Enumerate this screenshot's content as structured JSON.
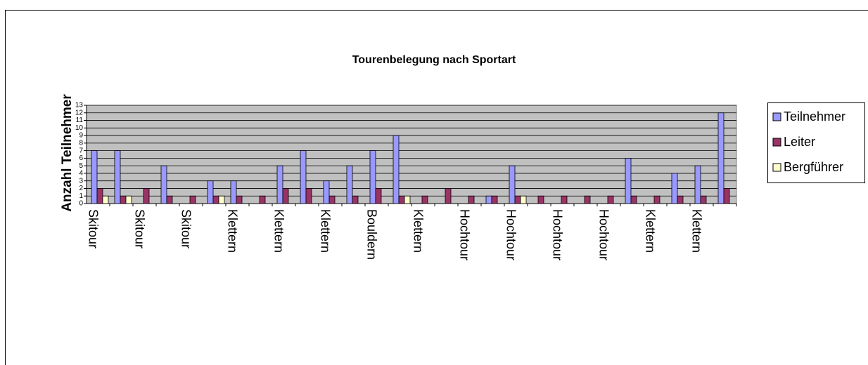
{
  "chart_data": {
    "type": "bar",
    "title": "Tourenbelegung nach Sportart",
    "y_label": "Anzahl Teilnehmer",
    "categories": [
      "Skitour",
      null,
      "Skitour",
      null,
      "Skitour",
      null,
      "Klettern",
      null,
      "Klettern",
      null,
      "Klettern",
      null,
      "Bouldern",
      null,
      "Klettern",
      null,
      "Hochtour",
      null,
      "Hochtour",
      null,
      "Hochtour",
      null,
      "Hochtour",
      null,
      "Klettern",
      null,
      "Klettern",
      null
    ],
    "series": [
      {
        "name": "Teilnehmer",
        "color": "#9999ff",
        "values": [
          7,
          7,
          0,
          5,
          0,
          3,
          3,
          0,
          5,
          7,
          3,
          5,
          7,
          9,
          0,
          0,
          0,
          1,
          5,
          0,
          0,
          0,
          0,
          6,
          0,
          4,
          5,
          12
        ]
      },
      {
        "name": "Leiter",
        "color": "#993366",
        "values": [
          2,
          1,
          2,
          1,
          1,
          1,
          1,
          1,
          2,
          2,
          1,
          1,
          2,
          1,
          1,
          2,
          1,
          1,
          1,
          1,
          1,
          1,
          1,
          1,
          1,
          1,
          1,
          2
        ]
      },
      {
        "name": "Bergführer",
        "color": "#ffffcc",
        "values": [
          1,
          1,
          0,
          0,
          0,
          1,
          0,
          0,
          0,
          0,
          0,
          0,
          0,
          1,
          0,
          0,
          0,
          0,
          1,
          0,
          0,
          0,
          0,
          0,
          0,
          0,
          0,
          0
        ]
      }
    ],
    "ylim": [
      0,
      13
    ],
    "yticks": [
      0,
      1,
      2,
      3,
      4,
      5,
      6,
      7,
      8,
      9,
      10,
      11,
      12,
      13
    ],
    "grid": true,
    "legend": "right"
  }
}
